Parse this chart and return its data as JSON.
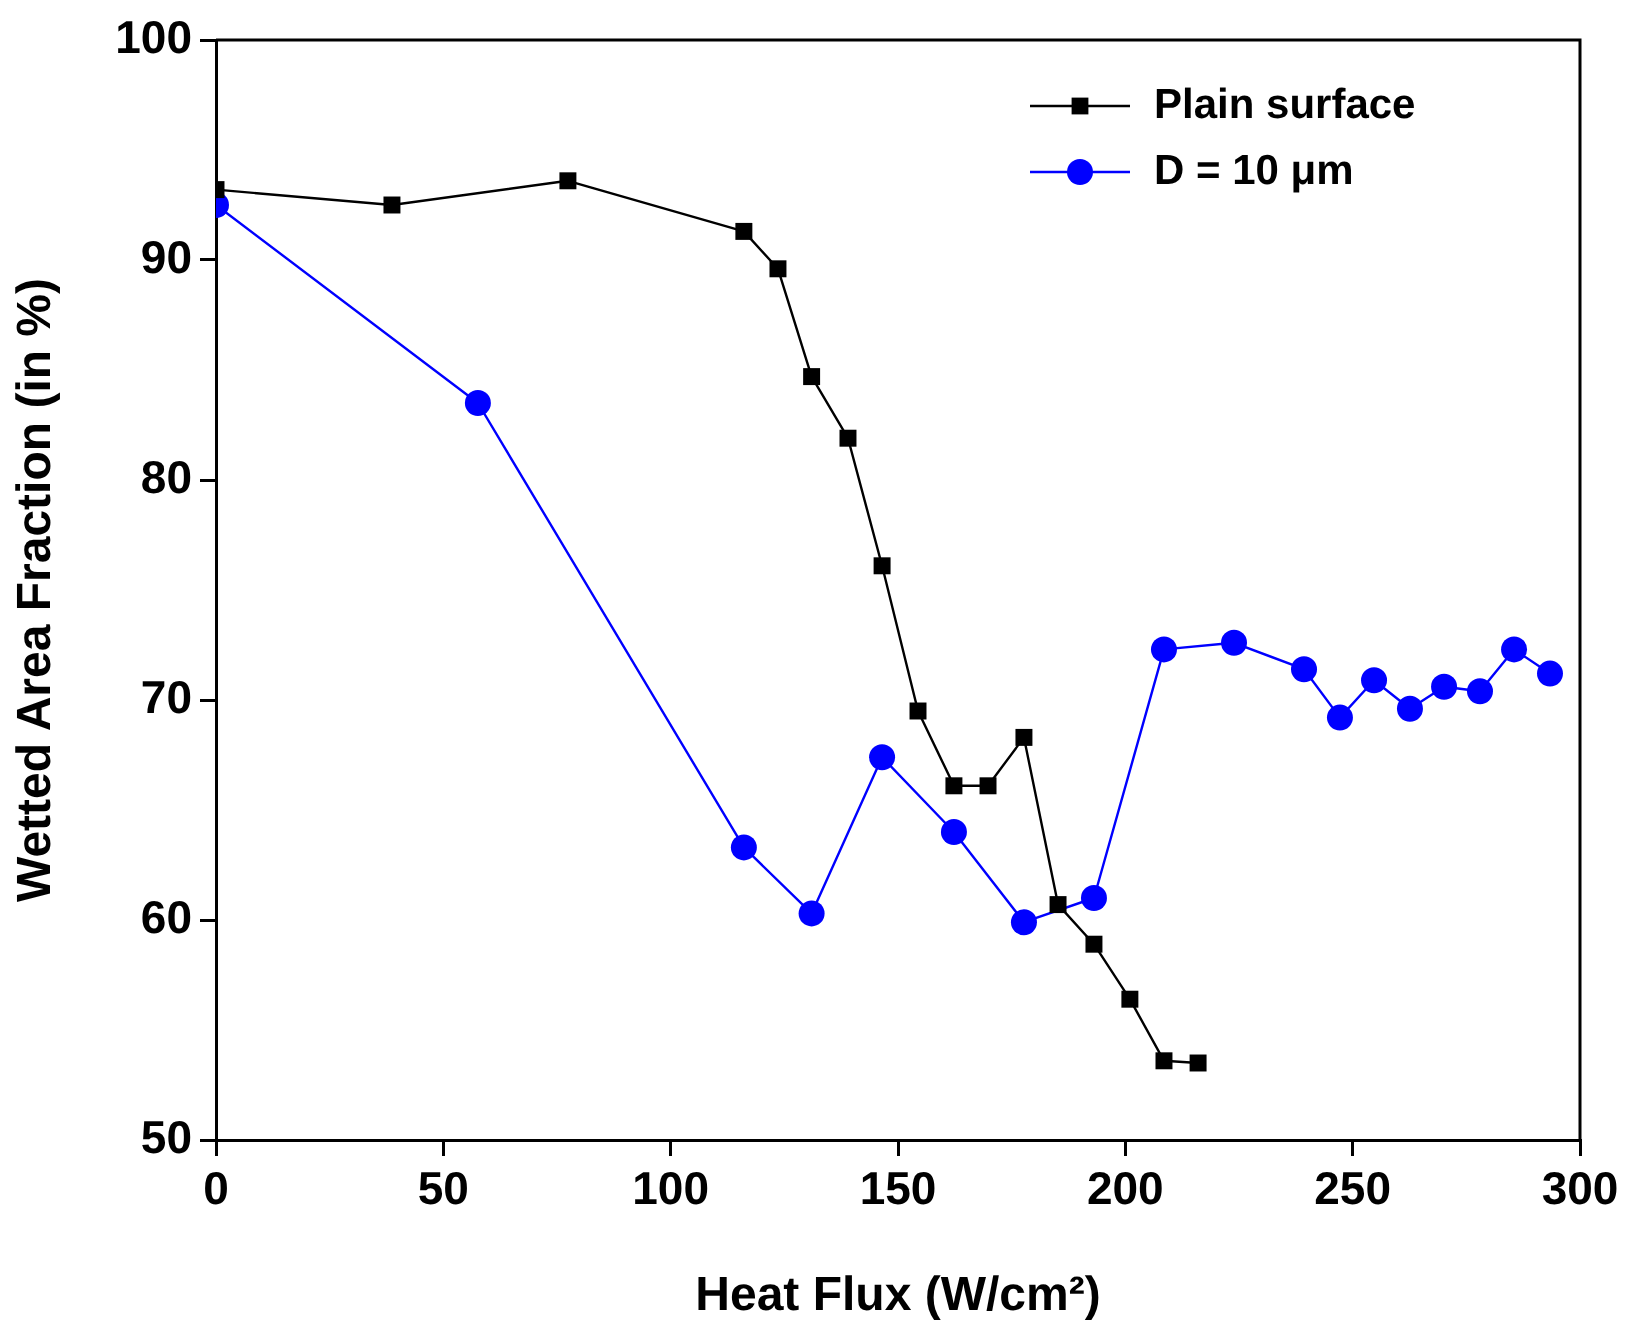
{
  "chart_data": {
    "type": "line",
    "xlabel": "Heat Flux (W/cm²)",
    "ylabel": "Wetted Area Fraction (in %)",
    "xlim": [
      0,
      300
    ],
    "xticks": [
      0,
      50,
      100,
      150,
      200,
      250,
      300
    ],
    "ylim": [
      50,
      100
    ],
    "yticks": [
      50,
      60,
      70,
      80,
      90,
      100
    ],
    "grid": false,
    "legend": "top right",
    "series": [
      {
        "name": "Plain surface",
        "color": "#000000",
        "marker": "square",
        "x": [
          0,
          38.7,
          77.4,
          116.1,
          123.6,
          131.0,
          139.0,
          146.5,
          154.4,
          162.3,
          169.8,
          177.7,
          185.2,
          193.1,
          201.0,
          208.5,
          216.0
        ],
        "values": [
          93.2,
          92.5,
          93.6,
          91.3,
          89.6,
          84.7,
          81.9,
          76.1,
          69.5,
          66.1,
          66.1,
          68.3,
          60.7,
          58.9,
          56.4,
          53.6,
          53.5
        ]
      },
      {
        "name": "D = 10 μm",
        "color": "#0000ff",
        "marker": "circle",
        "x": [
          0,
          57.6,
          116.1,
          131.0,
          146.5,
          162.3,
          177.7,
          193.1,
          208.5,
          223.9,
          239.3,
          247.2,
          254.7,
          262.6,
          270.1,
          278.0,
          285.5,
          293.4
        ],
        "values": [
          92.5,
          83.5,
          63.3,
          60.3,
          67.4,
          64.0,
          59.9,
          61.0,
          72.3,
          72.6,
          71.4,
          69.2,
          70.9,
          69.6,
          70.6,
          70.4,
          72.3,
          71.2
        ]
      }
    ]
  }
}
